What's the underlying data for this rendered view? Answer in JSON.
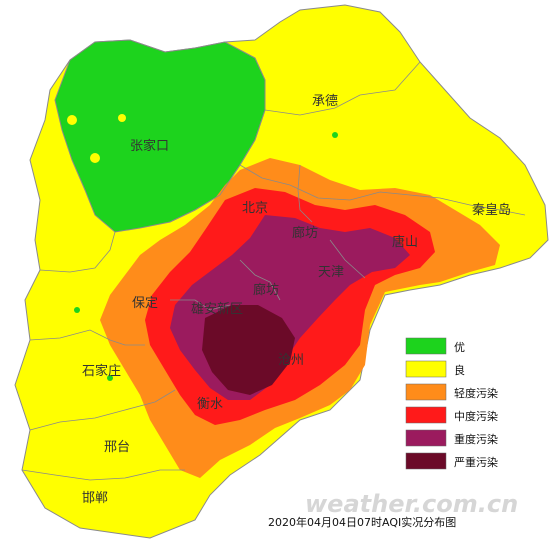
{
  "colors": {
    "you": "#1DD31D",
    "liang": "#FFFF00",
    "qingdu": "#FF8C1A",
    "zhongdu": "#FF1A1A",
    "zhongdu_heavy": "#9B1B5E",
    "yanzhong": "#6B0A28",
    "border": "#8a8a8a"
  },
  "cities": {
    "zhangjiakou": "张家口",
    "chengde": "承德",
    "qinhuangdao": "秦皇岛",
    "beijing": "北京",
    "langfang_n": "廊坊",
    "tangshan": "唐山",
    "tianjin": "天津",
    "langfang_s": "廊坊",
    "baoding": "保定",
    "xiongan": "雄安新区",
    "shijiazhuang": "石家庄",
    "cangzhou": "沧州",
    "hengshui": "衡水",
    "xingtai": "邢台",
    "handan": "邯郸"
  },
  "legend": [
    {
      "label": "优",
      "color": "#1DD31D"
    },
    {
      "label": "良",
      "color": "#FFFF00"
    },
    {
      "label": "轻度污染",
      "color": "#FF8C1A"
    },
    {
      "label": "中度污染",
      "color": "#FF1A1A"
    },
    {
      "label": "重度污染",
      "color": "#9B1B5E"
    },
    {
      "label": "严重污染",
      "color": "#6B0A28"
    }
  ],
  "caption": "2020年04月04日07时AQI实况分布图",
  "watermark": "weather.com.cn"
}
